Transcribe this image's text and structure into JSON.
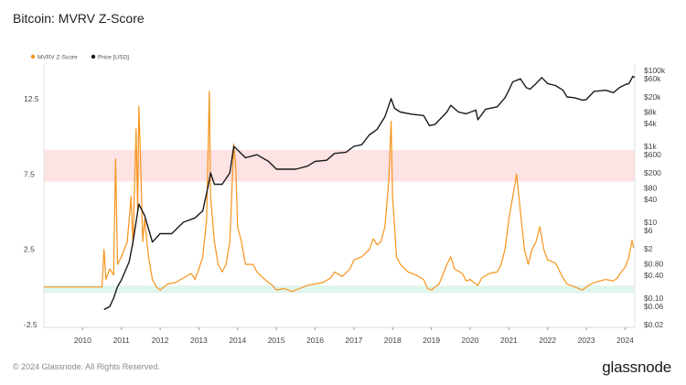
{
  "title": "Bitcoin: MVRV Z-Score",
  "footer": "© 2024 Glassnode. All Rights Reserved.",
  "brand": "glassnode",
  "colors": {
    "zscore": "#f7931a",
    "price": "#1a1a1a",
    "red_band": "#fde3e3",
    "green_band": "#e0f5ec",
    "grid": "#eeeeee"
  },
  "chart_data": {
    "type": "line",
    "title": "Bitcoin: MVRV Z-Score",
    "legend": [
      "MVRV Z-Score",
      "Price [USD]"
    ],
    "legend_position": "top-left",
    "x_ticks": [
      "2010",
      "2011",
      "2012",
      "2013",
      "2014",
      "2015",
      "2016",
      "2017",
      "2018",
      "2019",
      "2020",
      "2021",
      "2022",
      "2023",
      "2024"
    ],
    "x_range": [
      2009.0,
      2024.25
    ],
    "left_axis": {
      "ticks": [
        {
          "v": 12.5,
          "label": "12.5"
        },
        {
          "v": 7.5,
          "label": "7.5"
        },
        {
          "v": 2.5,
          "label": "2.5"
        },
        {
          "v": -2.5,
          "label": "-2.5"
        }
      ],
      "range": [
        -2.5,
        12.5
      ]
    },
    "right_axis": {
      "scale": "log",
      "ticks": [
        {
          "v": 100000,
          "label": "$100k"
        },
        {
          "v": 60000,
          "label": "$60k"
        },
        {
          "v": 20000,
          "label": "$20k"
        },
        {
          "v": 8000,
          "label": "$8k"
        },
        {
          "v": 4000,
          "label": "$4k"
        },
        {
          "v": 1000,
          "label": "$1k"
        },
        {
          "v": 600,
          "label": "$600"
        },
        {
          "v": 200,
          "label": "$200"
        },
        {
          "v": 80,
          "label": "$80"
        },
        {
          "v": 40,
          "label": "$40"
        },
        {
          "v": 10,
          "label": "$10"
        },
        {
          "v": 6,
          "label": "$6"
        },
        {
          "v": 2,
          "label": "$2"
        },
        {
          "v": 0.8,
          "label": "$0.80"
        },
        {
          "v": 0.4,
          "label": "$0.40"
        },
        {
          "v": 0.1,
          "label": "$0.10"
        },
        {
          "v": 0.06,
          "label": "$0.06"
        },
        {
          "v": 0.02,
          "label": "$0.02"
        }
      ]
    },
    "bands": [
      {
        "name": "overvalued",
        "from": 7.0,
        "to": 9.1
      },
      {
        "name": "undervalued",
        "from": -0.4,
        "to": 0.1
      }
    ],
    "series": [
      {
        "name": "MVRV Z-Score",
        "axis": "left",
        "points": [
          [
            2009.0,
            0.0
          ],
          [
            2010.5,
            0.0
          ],
          [
            2010.55,
            2.5
          ],
          [
            2010.6,
            0.5
          ],
          [
            2010.7,
            1.2
          ],
          [
            2010.8,
            0.8
          ],
          [
            2010.85,
            8.5
          ],
          [
            2010.9,
            1.5
          ],
          [
            2011.0,
            2.0
          ],
          [
            2011.15,
            3.0
          ],
          [
            2011.25,
            6.0
          ],
          [
            2011.3,
            2.8
          ],
          [
            2011.38,
            10.5
          ],
          [
            2011.42,
            5.0
          ],
          [
            2011.45,
            12.0
          ],
          [
            2011.5,
            8.0
          ],
          [
            2011.55,
            3.0
          ],
          [
            2011.6,
            4.5
          ],
          [
            2011.7,
            2.0
          ],
          [
            2011.8,
            0.5
          ],
          [
            2011.9,
            0.0
          ],
          [
            2012.0,
            -0.2
          ],
          [
            2012.2,
            0.2
          ],
          [
            2012.4,
            0.3
          ],
          [
            2012.6,
            0.6
          ],
          [
            2012.8,
            0.9
          ],
          [
            2012.9,
            0.5
          ],
          [
            2013.0,
            1.2
          ],
          [
            2013.1,
            2.0
          ],
          [
            2013.2,
            4.5
          ],
          [
            2013.27,
            13.0
          ],
          [
            2013.3,
            6.0
          ],
          [
            2013.4,
            3.0
          ],
          [
            2013.5,
            1.5
          ],
          [
            2013.6,
            1.0
          ],
          [
            2013.7,
            1.5
          ],
          [
            2013.8,
            3.0
          ],
          [
            2013.9,
            9.5
          ],
          [
            2013.95,
            8.0
          ],
          [
            2014.0,
            4.0
          ],
          [
            2014.1,
            3.0
          ],
          [
            2014.2,
            1.5
          ],
          [
            2014.4,
            1.5
          ],
          [
            2014.5,
            1.0
          ],
          [
            2014.7,
            0.5
          ],
          [
            2014.9,
            0.1
          ],
          [
            2015.0,
            -0.2
          ],
          [
            2015.2,
            -0.1
          ],
          [
            2015.4,
            -0.3
          ],
          [
            2015.6,
            -0.1
          ],
          [
            2015.8,
            0.1
          ],
          [
            2016.0,
            0.2
          ],
          [
            2016.2,
            0.3
          ],
          [
            2016.4,
            0.6
          ],
          [
            2016.5,
            1.0
          ],
          [
            2016.7,
            0.7
          ],
          [
            2016.9,
            1.2
          ],
          [
            2017.0,
            1.8
          ],
          [
            2017.2,
            2.0
          ],
          [
            2017.4,
            2.5
          ],
          [
            2017.5,
            3.2
          ],
          [
            2017.6,
            2.8
          ],
          [
            2017.7,
            3.0
          ],
          [
            2017.8,
            4.0
          ],
          [
            2017.9,
            7.0
          ],
          [
            2017.96,
            11.0
          ],
          [
            2018.0,
            6.0
          ],
          [
            2018.1,
            2.0
          ],
          [
            2018.2,
            1.5
          ],
          [
            2018.4,
            1.0
          ],
          [
            2018.6,
            0.8
          ],
          [
            2018.8,
            0.5
          ],
          [
            2018.9,
            -0.1
          ],
          [
            2019.0,
            -0.2
          ],
          [
            2019.2,
            0.2
          ],
          [
            2019.4,
            1.5
          ],
          [
            2019.5,
            2.0
          ],
          [
            2019.6,
            1.2
          ],
          [
            2019.8,
            0.9
          ],
          [
            2019.9,
            0.4
          ],
          [
            2020.0,
            0.5
          ],
          [
            2020.2,
            0.1
          ],
          [
            2020.3,
            0.6
          ],
          [
            2020.5,
            0.9
          ],
          [
            2020.7,
            1.0
          ],
          [
            2020.8,
            1.5
          ],
          [
            2020.9,
            2.5
          ],
          [
            2021.0,
            4.5
          ],
          [
            2021.1,
            6.0
          ],
          [
            2021.2,
            7.5
          ],
          [
            2021.3,
            5.0
          ],
          [
            2021.4,
            2.5
          ],
          [
            2021.5,
            1.5
          ],
          [
            2021.6,
            2.5
          ],
          [
            2021.7,
            3.0
          ],
          [
            2021.8,
            4.0
          ],
          [
            2021.9,
            2.5
          ],
          [
            2022.0,
            1.8
          ],
          [
            2022.2,
            1.6
          ],
          [
            2022.4,
            0.6
          ],
          [
            2022.5,
            0.2
          ],
          [
            2022.7,
            0.0
          ],
          [
            2022.9,
            -0.2
          ],
          [
            2023.0,
            0.0
          ],
          [
            2023.2,
            0.3
          ],
          [
            2023.5,
            0.5
          ],
          [
            2023.7,
            0.4
          ],
          [
            2023.8,
            0.6
          ],
          [
            2023.9,
            1.0
          ],
          [
            2024.0,
            1.3
          ],
          [
            2024.1,
            2.0
          ],
          [
            2024.18,
            3.1
          ],
          [
            2024.22,
            2.6
          ]
        ]
      },
      {
        "name": "Price [USD]",
        "axis": "right",
        "points": [
          [
            2010.55,
            0.05
          ],
          [
            2010.7,
            0.06
          ],
          [
            2010.8,
            0.1
          ],
          [
            2010.9,
            0.2
          ],
          [
            2011.0,
            0.3
          ],
          [
            2011.2,
            0.9
          ],
          [
            2011.3,
            3.0
          ],
          [
            2011.45,
            30
          ],
          [
            2011.6,
            15
          ],
          [
            2011.8,
            3.0
          ],
          [
            2012.0,
            5.0
          ],
          [
            2012.3,
            5.0
          ],
          [
            2012.6,
            10
          ],
          [
            2012.9,
            13
          ],
          [
            2013.1,
            20
          ],
          [
            2013.25,
            100
          ],
          [
            2013.3,
            200
          ],
          [
            2013.4,
            100
          ],
          [
            2013.6,
            100
          ],
          [
            2013.8,
            200
          ],
          [
            2013.9,
            1000
          ],
          [
            2014.0,
            800
          ],
          [
            2014.2,
            500
          ],
          [
            2014.5,
            600
          ],
          [
            2014.8,
            400
          ],
          [
            2015.0,
            250
          ],
          [
            2015.2,
            250
          ],
          [
            2015.5,
            250
          ],
          [
            2015.8,
            300
          ],
          [
            2016.0,
            400
          ],
          [
            2016.3,
            430
          ],
          [
            2016.5,
            650
          ],
          [
            2016.8,
            700
          ],
          [
            2017.0,
            1000
          ],
          [
            2017.2,
            1100
          ],
          [
            2017.4,
            2000
          ],
          [
            2017.6,
            2800
          ],
          [
            2017.8,
            6000
          ],
          [
            2017.96,
            18000
          ],
          [
            2018.05,
            10000
          ],
          [
            2018.2,
            8000
          ],
          [
            2018.5,
            7000
          ],
          [
            2018.8,
            6500
          ],
          [
            2018.95,
            3500
          ],
          [
            2019.1,
            3800
          ],
          [
            2019.4,
            8000
          ],
          [
            2019.5,
            12000
          ],
          [
            2019.7,
            8000
          ],
          [
            2019.9,
            7200
          ],
          [
            2020.15,
            9000
          ],
          [
            2020.2,
            5000
          ],
          [
            2020.4,
            9500
          ],
          [
            2020.7,
            11000
          ],
          [
            2020.9,
            19000
          ],
          [
            2021.0,
            30000
          ],
          [
            2021.1,
            50000
          ],
          [
            2021.3,
            60000
          ],
          [
            2021.45,
            35000
          ],
          [
            2021.55,
            32000
          ],
          [
            2021.7,
            45000
          ],
          [
            2021.85,
            65000
          ],
          [
            2022.0,
            45000
          ],
          [
            2022.2,
            40000
          ],
          [
            2022.4,
            30000
          ],
          [
            2022.5,
            20000
          ],
          [
            2022.7,
            19000
          ],
          [
            2022.9,
            16500
          ],
          [
            2023.0,
            17000
          ],
          [
            2023.2,
            28000
          ],
          [
            2023.5,
            30000
          ],
          [
            2023.7,
            26000
          ],
          [
            2023.85,
            35000
          ],
          [
            2024.0,
            42000
          ],
          [
            2024.1,
            45000
          ],
          [
            2024.2,
            70000
          ],
          [
            2024.25,
            65000
          ]
        ]
      }
    ]
  }
}
